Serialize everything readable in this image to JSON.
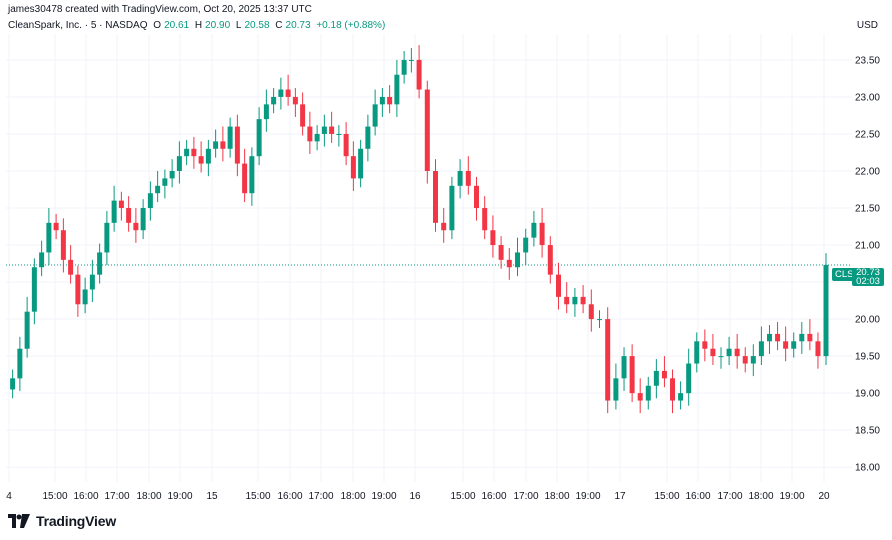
{
  "header": {
    "creator_line": "james30478 created with TradingView.com, Oct 20, 2025 13:37 UTC"
  },
  "legend": {
    "symbol": "CleanSpark, Inc. · 5 · NASDAQ",
    "open_label": "O",
    "open": "20.61",
    "high_label": "H",
    "high": "20.90",
    "low_label": "L",
    "low": "20.58",
    "close_label": "C",
    "close": "20.73",
    "change": "+0.18 (+0.88%)"
  },
  "currency": "USD",
  "price_tag": {
    "symbol": "CLSK",
    "price": "20.73",
    "countdown": "02:03"
  },
  "footer": {
    "brand": "TradingView"
  },
  "colors": {
    "up": "#089981",
    "down": "#f23645",
    "grid": "#f0f3fa",
    "last_line": "#089981"
  },
  "chart_data": {
    "type": "candlestick",
    "y_ticks": [
      "23.50",
      "23.00",
      "22.50",
      "22.00",
      "21.50",
      "21.00",
      "20.50",
      "20.00",
      "19.50",
      "19.00",
      "18.50",
      "18.00"
    ],
    "ylim": [
      17.8,
      23.85
    ],
    "x_ticks": [
      "4",
      "15:00",
      "16:00",
      "17:00",
      "18:00",
      "19:00",
      "15",
      "15:00",
      "16:00",
      "17:00",
      "18:00",
      "19:00",
      "16",
      "15:00",
      "16:00",
      "17:00",
      "18:00",
      "19:00",
      "17",
      "15:00",
      "16:00",
      "17:00",
      "18:00",
      "19:00",
      "20"
    ],
    "last_price": 20.73,
    "series": [
      {
        "name": "CLSK",
        "close": [
          19.2,
          19.6,
          20.1,
          20.7,
          20.9,
          21.3,
          21.2,
          20.8,
          20.6,
          20.2,
          20.4,
          20.6,
          20.9,
          21.3,
          21.6,
          21.5,
          21.3,
          21.2,
          21.5,
          21.7,
          21.8,
          21.9,
          22.0,
          22.2,
          22.3,
          22.2,
          22.1,
          22.3,
          22.4,
          22.3,
          22.6,
          22.1,
          21.7,
          22.2,
          22.7,
          22.9,
          23.0,
          23.1,
          23.0,
          22.9,
          22.6,
          22.4,
          22.5,
          22.6,
          22.5,
          22.5,
          22.2,
          21.9,
          22.3,
          22.6,
          22.9,
          23.0,
          22.9,
          23.3,
          23.5,
          23.5,
          23.1,
          22.0,
          21.3,
          21.2,
          21.8,
          22.0,
          21.8,
          21.5,
          21.2,
          21.0,
          20.8,
          20.7,
          20.9,
          21.1,
          21.3,
          21.0,
          20.6,
          20.3,
          20.2,
          20.3,
          20.2,
          20.0,
          20.0,
          18.9,
          19.2,
          19.5,
          19.0,
          18.9,
          19.1,
          19.3,
          19.2,
          18.9,
          19.0,
          19.4,
          19.7,
          19.6,
          19.5,
          19.5,
          19.6,
          19.5,
          19.4,
          19.5,
          19.7,
          19.8,
          19.7,
          19.6,
          19.7,
          19.8,
          19.7,
          19.5,
          20.73
        ]
      }
    ]
  }
}
